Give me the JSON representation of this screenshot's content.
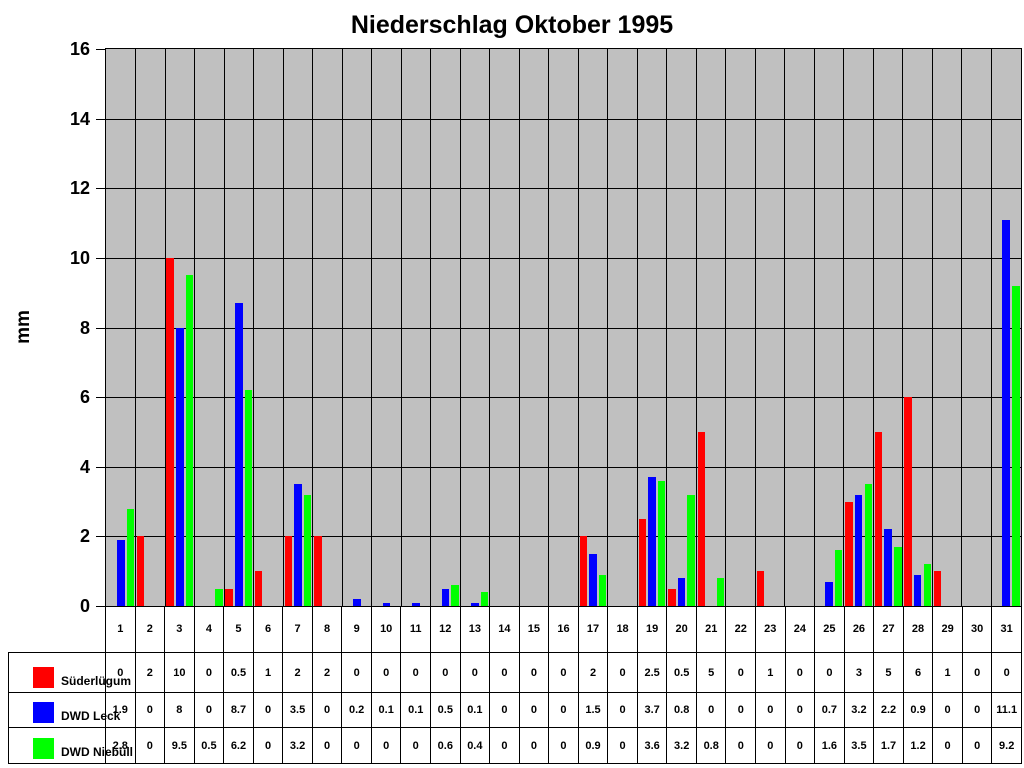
{
  "title": "Niederschlag Oktober 1995",
  "chart_data": {
    "type": "bar",
    "title": "Niederschlag Oktober 1995",
    "xlabel": "",
    "ylabel": "mm",
    "ylim": [
      0,
      16
    ],
    "ytick_step": 2,
    "grid": "both",
    "plot_background": "#C0C0C0",
    "gridline_color": "#000000",
    "legend_position": "table-left",
    "categories": [
      1,
      2,
      3,
      4,
      5,
      6,
      7,
      8,
      9,
      10,
      11,
      12,
      13,
      14,
      15,
      16,
      17,
      18,
      19,
      20,
      21,
      22,
      23,
      24,
      25,
      26,
      27,
      28,
      29,
      30,
      31
    ],
    "series": [
      {
        "name": "Süderlügum",
        "color": "#FF0000",
        "values": [
          0,
          2,
          10,
          0,
          0.5,
          1,
          2,
          2,
          0,
          0,
          0,
          0,
          0,
          0,
          0,
          0,
          2,
          0,
          2.5,
          0.5,
          5,
          0,
          1,
          0,
          0,
          3,
          5,
          6,
          1,
          0,
          0
        ]
      },
      {
        "name": "DWD Leck",
        "color": "#0000FF",
        "values": [
          1.9,
          0,
          8,
          0,
          8.7,
          0,
          3.5,
          0,
          0.2,
          0.1,
          0.1,
          0.5,
          0.1,
          0,
          0,
          0,
          1.5,
          0,
          3.7,
          0.8,
          0,
          0,
          0,
          0,
          0.7,
          3.2,
          2.2,
          0.9,
          0,
          0,
          11.1
        ]
      },
      {
        "name": "DWD Niebüll",
        "color": "#00FF00",
        "values": [
          2.8,
          0,
          9.5,
          0.5,
          6.2,
          0,
          3.2,
          0,
          0,
          0,
          0,
          0.6,
          0.4,
          0,
          0,
          0,
          0.9,
          0,
          3.6,
          3.2,
          0.8,
          0,
          0,
          0,
          1.6,
          3.5,
          1.7,
          1.2,
          0,
          0,
          9.2
        ]
      }
    ]
  }
}
